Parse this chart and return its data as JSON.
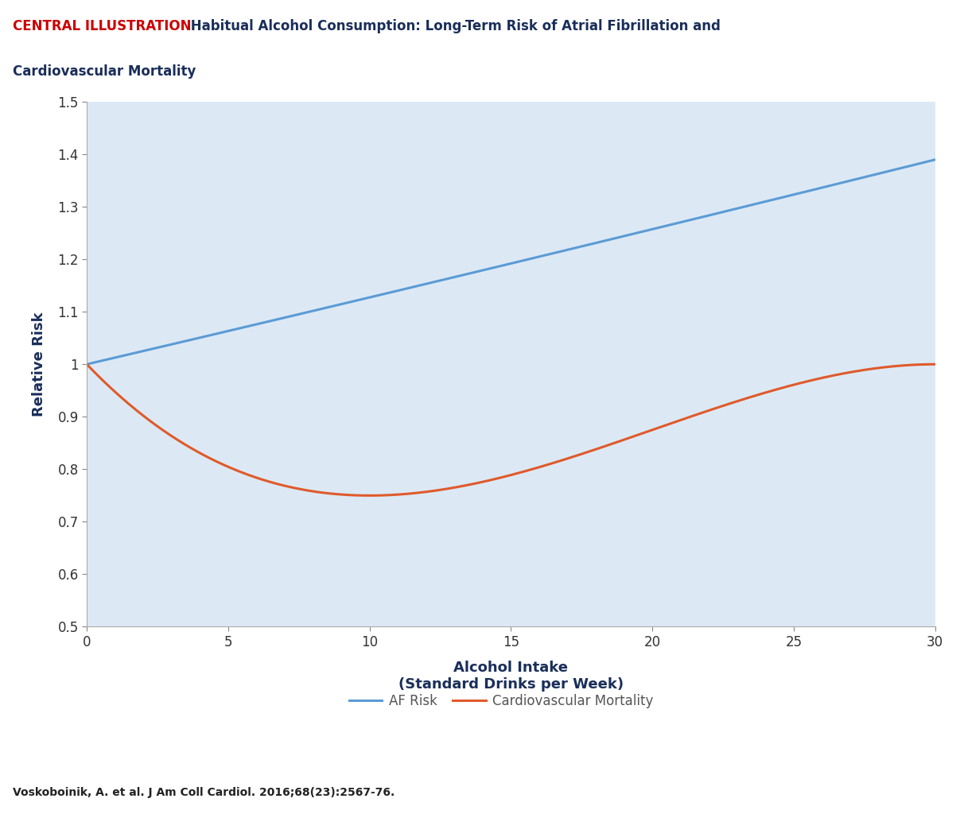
{
  "title_red": "CENTRAL ILLUSTRATION",
  "title_black_1": " Habitual Alcohol Consumption: Long-Term Risk of Atrial Fibrillation and",
  "title_black_2": "Cardiovascular Mortality",
  "xlabel_line1": "Alcohol Intake",
  "xlabel_line2": "(Standard Drinks per Week)",
  "ylabel": "Relative Risk",
  "xlim": [
    0,
    30
  ],
  "ylim": [
    0.5,
    1.5
  ],
  "xticks": [
    0,
    5,
    10,
    15,
    20,
    25,
    30
  ],
  "yticks": [
    0.5,
    0.6,
    0.7,
    0.8,
    0.9,
    1.0,
    1.1,
    1.2,
    1.3,
    1.4,
    1.5
  ],
  "ytick_labels": [
    "0.5",
    "0.6",
    "0.7",
    "0.8",
    "0.9",
    "1",
    "1.1",
    "1.2",
    "1.3",
    "1.4",
    "1.5"
  ],
  "xtick_labels": [
    "0",
    "5",
    "10",
    "15",
    "20",
    "25",
    "30"
  ],
  "af_color": "#5b9bd5",
  "cv_color": "#e05a2b",
  "plot_bg_color": "#dce9f5",
  "header_bg": "#d0e3f0",
  "figure_bg": "#ffffff",
  "legend_af": "AF Risk",
  "legend_cv": "Cardiovascular Mortality",
  "citation": "Voskoboinik, A. et al. J Am Coll Cardiol. 2016;68(23):2567-76.",
  "title_red_color": "#cc0000",
  "title_black_color": "#1a2e5a",
  "axis_label_color": "#1a2e5a",
  "tick_color": "#333333",
  "legend_color": "#555555",
  "title_fontsize": 12,
  "axis_label_fontsize": 13,
  "tick_fontsize": 12,
  "legend_fontsize": 12,
  "citation_fontsize": 10
}
